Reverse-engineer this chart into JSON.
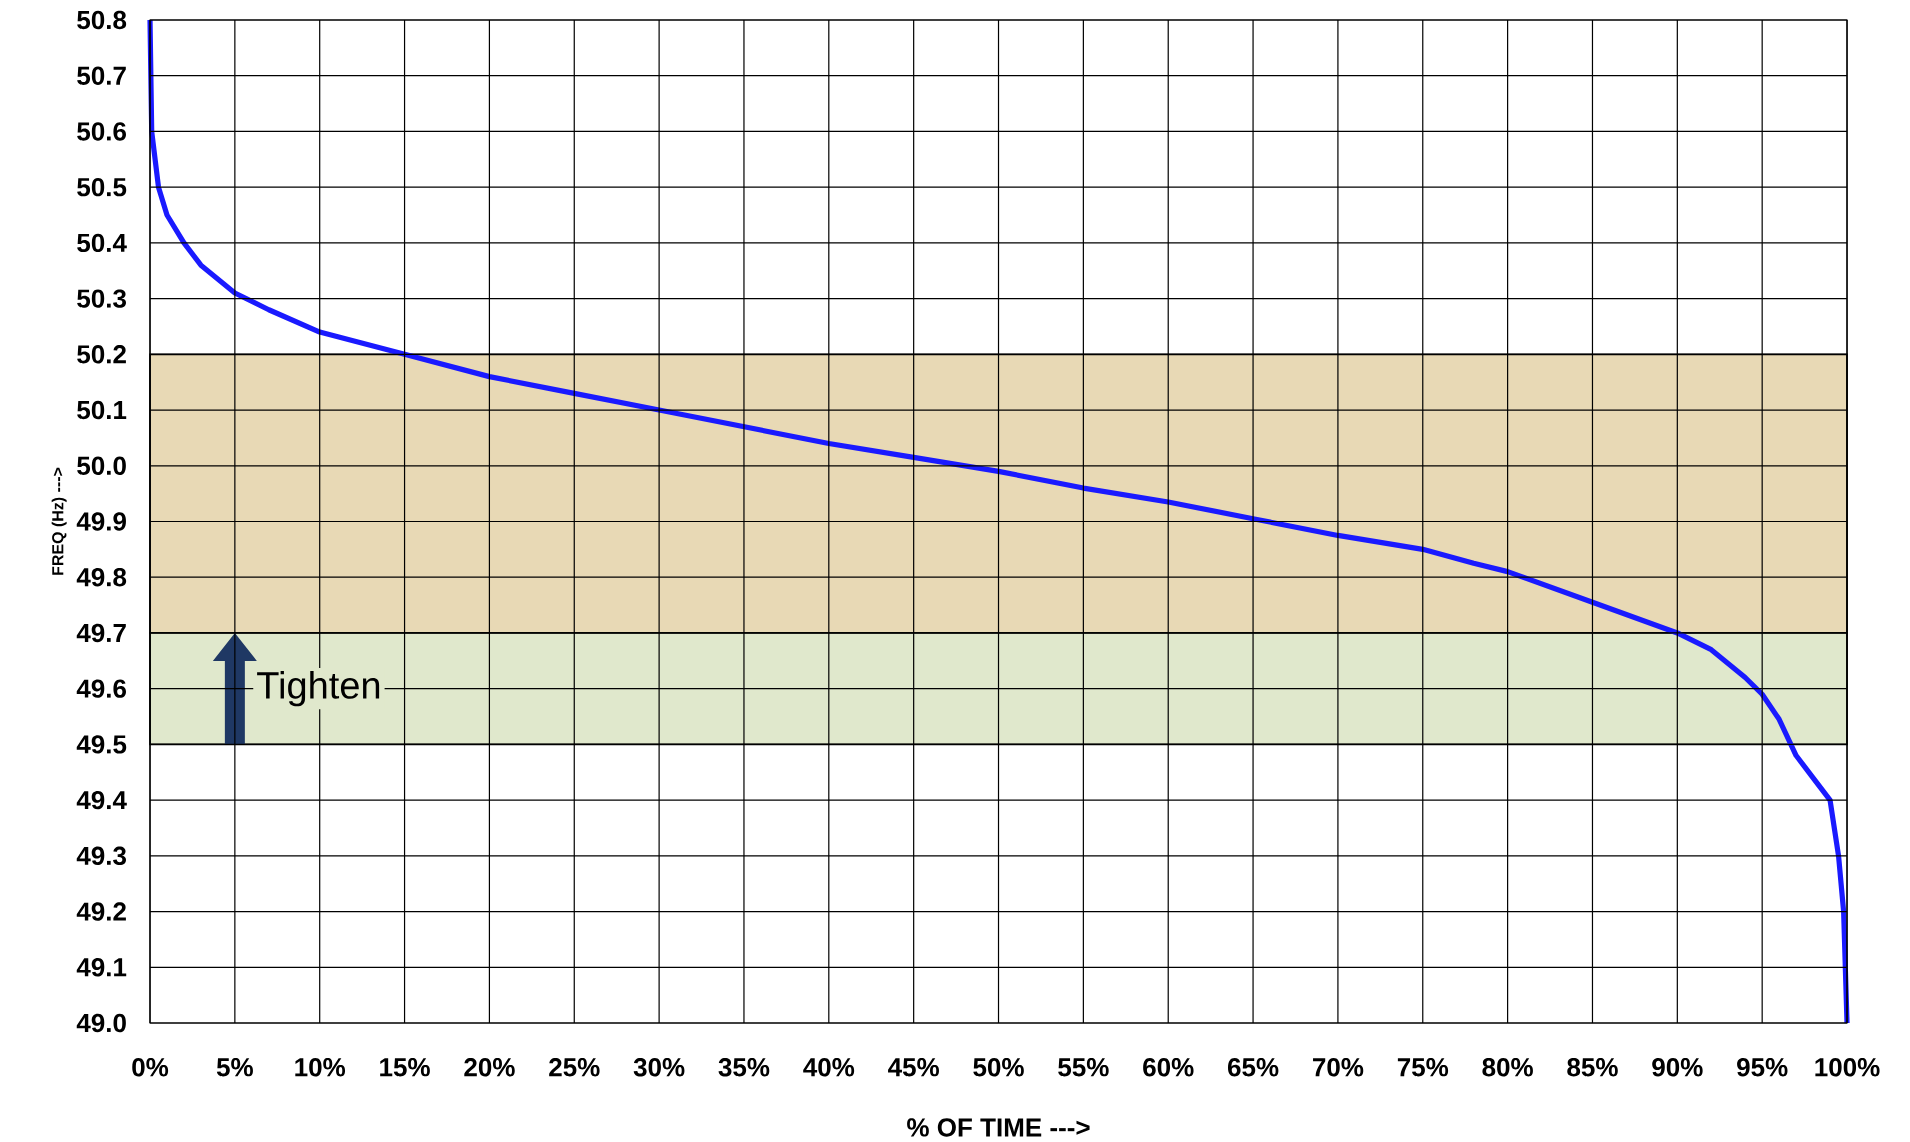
{
  "chart_data": {
    "type": "line",
    "xlabel": "% OF TIME --->",
    "ylabel": "FREQ (Hz) --->",
    "x": [
      0,
      0.1,
      0.5,
      1,
      2,
      3,
      5,
      7,
      10,
      15,
      20,
      25,
      30,
      35,
      40,
      45,
      50,
      55,
      60,
      65,
      70,
      75,
      78,
      80,
      85,
      90,
      92,
      94,
      95,
      96,
      97,
      98,
      99,
      99.5,
      99.8,
      100
    ],
    "series": [
      {
        "color": "#1a1aff",
        "values": [
          50.8,
          50.6,
          50.5,
          50.45,
          50.4,
          50.36,
          50.31,
          50.28,
          50.24,
          50.2,
          50.16,
          50.13,
          50.1,
          50.07,
          50.04,
          50.015,
          49.99,
          49.96,
          49.935,
          49.905,
          49.875,
          49.85,
          49.825,
          49.81,
          49.755,
          49.7,
          49.67,
          49.62,
          49.59,
          49.545,
          49.48,
          49.44,
          49.4,
          49.3,
          49.2,
          49.0
        ]
      }
    ],
    "xlim": [
      0,
      100
    ],
    "ylim": [
      49.0,
      50.8
    ],
    "xticks": [
      {
        "value": 0,
        "label": "0%"
      },
      {
        "value": 5,
        "label": "5%"
      },
      {
        "value": 10,
        "label": "10%"
      },
      {
        "value": 15,
        "label": "15%"
      },
      {
        "value": 20,
        "label": "20%"
      },
      {
        "value": 25,
        "label": "25%"
      },
      {
        "value": 30,
        "label": "30%"
      },
      {
        "value": 35,
        "label": "35%"
      },
      {
        "value": 40,
        "label": "40%"
      },
      {
        "value": 45,
        "label": "45%"
      },
      {
        "value": 50,
        "label": "50%"
      },
      {
        "value": 55,
        "label": "55%"
      },
      {
        "value": 60,
        "label": "60%"
      },
      {
        "value": 65,
        "label": "65%"
      },
      {
        "value": 70,
        "label": "70%"
      },
      {
        "value": 75,
        "label": "75%"
      },
      {
        "value": 80,
        "label": "80%"
      },
      {
        "value": 85,
        "label": "85%"
      },
      {
        "value": 90,
        "label": "90%"
      },
      {
        "value": 95,
        "label": "95%"
      },
      {
        "value": 100,
        "label": "100%"
      }
    ],
    "yticks": [
      {
        "value": 49.0,
        "label": "49.0"
      },
      49.1,
      49.2,
      49.3,
      49.4,
      49.5,
      49.6,
      49.7,
      49.8,
      49.9,
      {
        "value": 50.0,
        "label": "50.0"
      },
      50.1,
      50.2,
      50.3,
      50.4,
      50.5,
      50.6,
      50.7,
      50.8
    ],
    "bands": [
      {
        "axis": "y",
        "from": 49.7,
        "to": 50.2,
        "color": "#e8d9b5"
      },
      {
        "axis": "y",
        "from": 49.5,
        "to": 49.7,
        "color": "#e0e8cc"
      }
    ],
    "annotations": [
      "Tighten"
    ],
    "grid": true,
    "line_style": "solid"
  }
}
